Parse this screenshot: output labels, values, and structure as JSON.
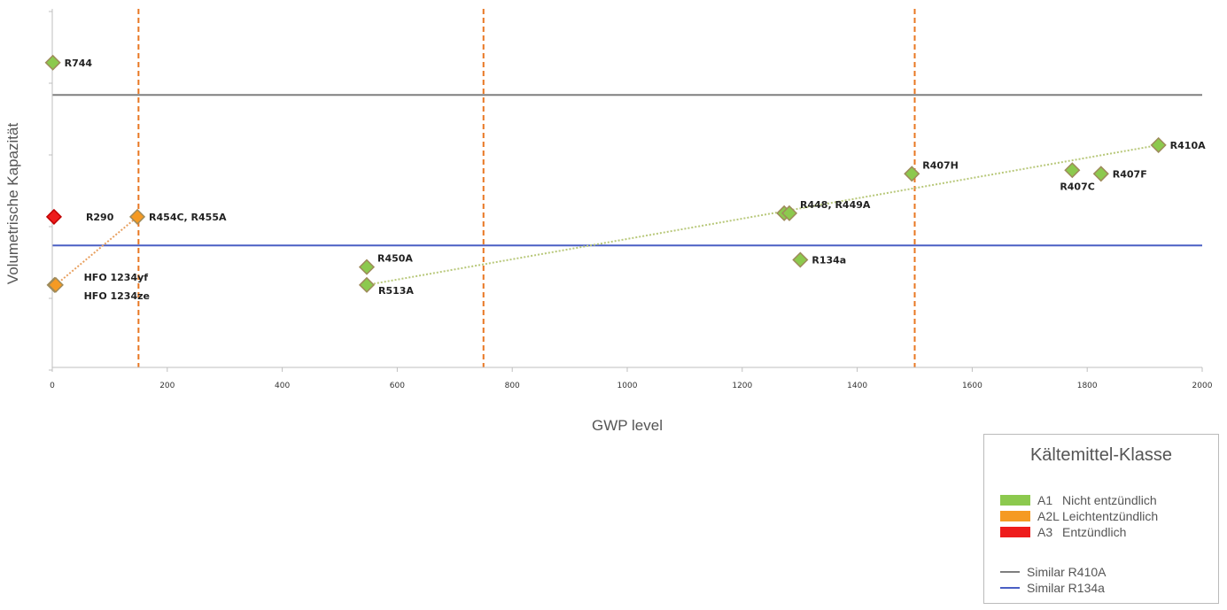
{
  "chart_data": {
    "type": "scatter",
    "xlabel": "GWP level",
    "ylabel": "Volumetrische Kapazität",
    "xlim": [
      0,
      2000
    ],
    "ylim": [
      0,
      10
    ],
    "xticks": [
      0,
      200,
      400,
      600,
      800,
      1000,
      1200,
      1400,
      1600,
      1800,
      2000
    ],
    "grid": false,
    "points": [
      {
        "label": "R744",
        "x": 1,
        "y": 8.5,
        "class": "A1"
      },
      {
        "label": "R290",
        "x": 3,
        "y": 4.2,
        "class": "A3"
      },
      {
        "label": "HFO 1234yf",
        "x": 4,
        "y": 2.3,
        "class": "A2L"
      },
      {
        "label": "HFO 1234ze",
        "x": 6,
        "y": 2.3,
        "class": "A2L"
      },
      {
        "label": "R454C, R455A",
        "x": 148,
        "y": 4.2,
        "class": "A2L"
      },
      {
        "label": "R450A",
        "x": 547,
        "y": 2.8,
        "class": "A1"
      },
      {
        "label": "R513A",
        "x": 547,
        "y": 2.3,
        "class": "A1"
      },
      {
        "label": "R448",
        "x": 1273,
        "y": 4.3,
        "class": "A1"
      },
      {
        "label": "R449A",
        "x": 1282,
        "y": 4.3,
        "class": "A1"
      },
      {
        "label": "R134a",
        "x": 1301,
        "y": 3.0,
        "class": "A1"
      },
      {
        "label": "R407H",
        "x": 1495,
        "y": 5.4,
        "class": "A1"
      },
      {
        "label": "R407C",
        "x": 1774,
        "y": 5.5,
        "class": "A1"
      },
      {
        "label": "R407F",
        "x": 1824,
        "y": 5.4,
        "class": "A1"
      },
      {
        "label": "R410A",
        "x": 1924,
        "y": 6.2,
        "class": "A1"
      }
    ],
    "labels": [
      {
        "text": "R744",
        "x": 1,
        "y": 8.5,
        "anchor": "right"
      },
      {
        "text": "R290",
        "x": 3,
        "y": 4.2,
        "anchor": "right-far"
      },
      {
        "text": "HFO 1234yf",
        "x": 4,
        "y": 2.3,
        "anchor": "right-far-up"
      },
      {
        "text": "HFO 1234ze",
        "x": 4,
        "y": 2.3,
        "anchor": "right-far-down"
      },
      {
        "text": "R454C, R455A",
        "x": 148,
        "y": 4.2,
        "anchor": "right"
      },
      {
        "text": "R450A",
        "x": 547,
        "y": 2.8,
        "anchor": "right-up"
      },
      {
        "text": "R513A",
        "x": 547,
        "y": 2.3,
        "anchor": "right-down"
      },
      {
        "text": "R448, R449A",
        "x": 1282,
        "y": 4.3,
        "anchor": "right-up"
      },
      {
        "text": "R134a",
        "x": 1301,
        "y": 3.0,
        "anchor": "right"
      },
      {
        "text": "R407H",
        "x": 1495,
        "y": 5.4,
        "anchor": "right-up"
      },
      {
        "text": "R407C",
        "x": 1774,
        "y": 5.5,
        "anchor": "below"
      },
      {
        "text": "R407F",
        "x": 1824,
        "y": 5.4,
        "anchor": "right"
      },
      {
        "text": "R410A",
        "x": 1924,
        "y": 6.2,
        "anchor": "right"
      }
    ],
    "reference_lines": [
      {
        "name": "Similar R410A",
        "y": 7.6,
        "color": "#7f7f7f"
      },
      {
        "name": "Similar R134a",
        "y": 3.4,
        "color": "#4a5fc4"
      }
    ],
    "threshold_lines_x": [
      150,
      750,
      1500
    ],
    "threshold_color": "#e87722",
    "trend_lines": [
      {
        "from": [
          6,
          2.3
        ],
        "to": [
          148,
          4.2
        ],
        "color": "#e8a060"
      },
      {
        "from": [
          547,
          2.3
        ],
        "to": [
          1924,
          6.2
        ],
        "color": "#b8c87a"
      }
    ],
    "legend": {
      "title": "Kältemittel-Klasse",
      "placement": "bottom-right",
      "classes": [
        {
          "key": "A1",
          "code": "A1",
          "text": "Nicht entzündlich",
          "color": "#8cc94e"
        },
        {
          "key": "A2L",
          "code": "A2L",
          "text": "Leichtentzündlich",
          "color": "#f59a23"
        },
        {
          "key": "A3",
          "code": "A3",
          "text": "Entzündlich",
          "color": "#ee1c1c"
        }
      ],
      "lines": [
        {
          "text": "Similar R410A",
          "color": "#7f7f7f"
        },
        {
          "text": "Similar R134a",
          "color": "#4a5fc4"
        }
      ]
    }
  }
}
